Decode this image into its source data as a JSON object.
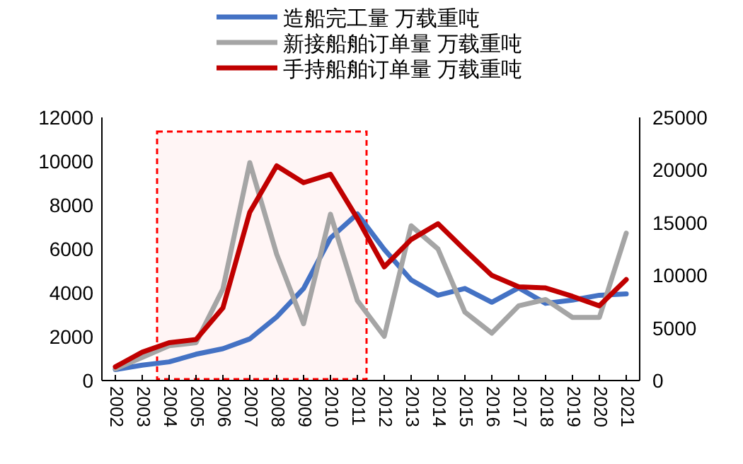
{
  "chart_data": {
    "type": "line",
    "categories": [
      "2002",
      "2003",
      "2004",
      "2005",
      "2006",
      "2007",
      "2008",
      "2009",
      "2010",
      "2011",
      "2012",
      "2013",
      "2014",
      "2015",
      "2016",
      "2017",
      "2018",
      "2019",
      "2020",
      "2021"
    ],
    "series": [
      {
        "name": "造船完工量 万载重吨",
        "color": "#4472c4",
        "values": [
          500,
          700,
          850,
          1200,
          1450,
          1900,
          2900,
          4200,
          6500,
          7600,
          5980,
          4590,
          3890,
          4200,
          3570,
          4230,
          3520,
          3670,
          3890,
          3950
        ]
      },
      {
        "name": "新接船舶订单量 万载重吨",
        "color": "#a5a5a5",
        "axis": "y2",
        "values": [
          1100,
          2200,
          3300,
          3600,
          8700,
          20700,
          12000,
          5400,
          15800,
          7600,
          4200,
          14700,
          12500,
          6500,
          4500,
          7100,
          7700,
          6000,
          6000,
          14000
        ]
      },
      {
        "name": "手持船舶订单量 万载重吨",
        "color": "#c00000",
        "axis": "y2",
        "values": [
          1300,
          2700,
          3600,
          3900,
          6900,
          16000,
          20400,
          18800,
          19600,
          15400,
          10800,
          13400,
          14900,
          12400,
          10000,
          8900,
          8800,
          8000,
          7100,
          9600
        ]
      }
    ],
    "ylim": [
      0,
      12000
    ],
    "yticks": [
      0,
      2000,
      4000,
      6000,
      8000,
      10000,
      12000
    ],
    "y2lim": [
      0,
      25000
    ],
    "y2ticks": [
      0,
      5000,
      10000,
      15000,
      20000,
      25000
    ],
    "bands": [
      {
        "axis": "x",
        "from": "2004",
        "to": "2011",
        "color": "#ff0000"
      }
    ],
    "legend": "top",
    "grid": false
  }
}
